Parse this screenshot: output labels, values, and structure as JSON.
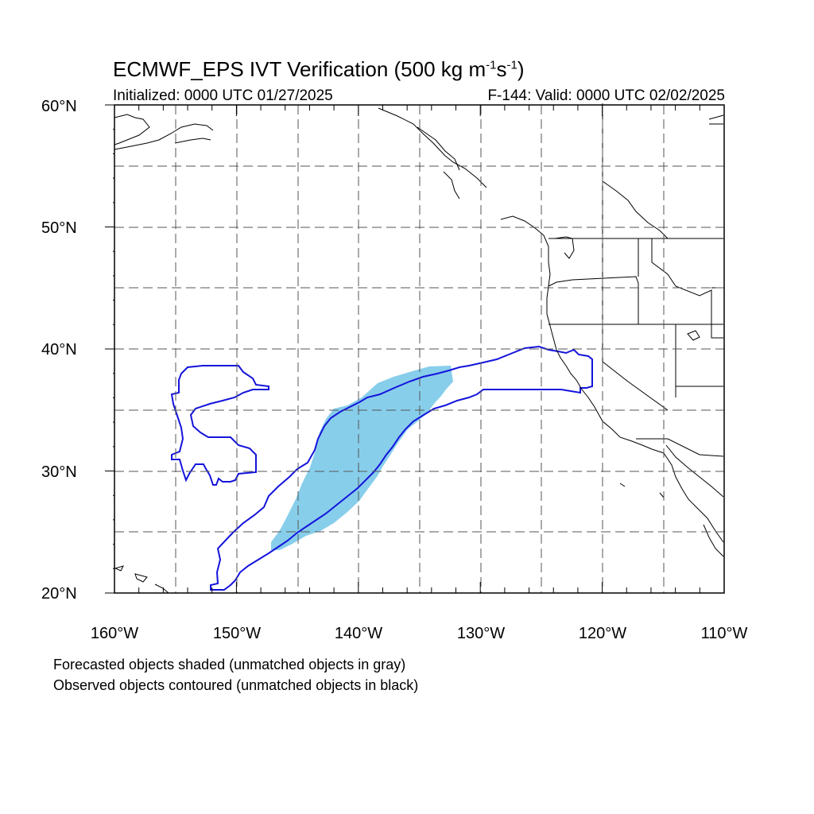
{
  "map": {
    "title_main": "ECMWF_EPS IVT Verification (500 kg m",
    "title_sup1": "-1",
    "title_mid": "s",
    "title_sup2": "-1",
    "title_end": ")",
    "initialized": "Initialized: 0000 UTC 01/27/2025",
    "valid": "F-144: Valid: 0000 UTC 02/02/2025",
    "lat_labels": [
      "60°N",
      "50°N",
      "40°N",
      "30°N",
      "20°N"
    ],
    "lon_labels": [
      "160°W",
      "150°W",
      "140°W",
      "130°W",
      "120°W",
      "110°W"
    ],
    "extent": {
      "lon_min": -160,
      "lon_max": -110,
      "lat_min": 20,
      "lat_max": 60
    },
    "colors": {
      "forecast_fill": "#87ceeb",
      "observed_contour": "#1414dc",
      "coast": "#000000",
      "grid": "#555555"
    },
    "notes": [
      "Forecasted objects shaded (unmatched objects in gray)",
      "Observed objects contoured (unmatched objects in black)"
    ]
  }
}
